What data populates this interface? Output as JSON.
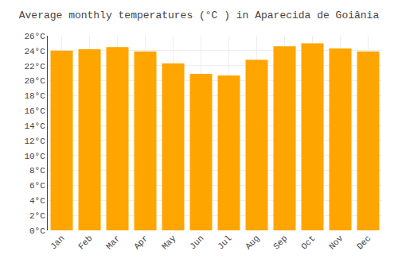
{
  "chart_data": {
    "type": "bar",
    "title": "Average monthly temperatures (°C ) in Aparecida de Goiânia",
    "categories": [
      "Jan",
      "Feb",
      "Mar",
      "Apr",
      "May",
      "Jun",
      "Jul",
      "Aug",
      "Sep",
      "Oct",
      "Nov",
      "Dec"
    ],
    "values": [
      24.0,
      24.2,
      24.5,
      23.9,
      22.3,
      20.9,
      20.7,
      22.8,
      24.6,
      25.0,
      24.3,
      23.9
    ],
    "color": "#FFA500",
    "ylim": [
      0,
      26
    ],
    "yticks": [
      {
        "value": 0,
        "label": "0°C"
      },
      {
        "value": 2,
        "label": "2°C"
      },
      {
        "value": 4,
        "label": "4°C"
      },
      {
        "value": 6,
        "label": "6°C"
      },
      {
        "value": 8,
        "label": "8°C"
      },
      {
        "value": 10,
        "label": "10°C"
      },
      {
        "value": 12,
        "label": "12°C"
      },
      {
        "value": 14,
        "label": "14°C"
      },
      {
        "value": 16,
        "label": "16°C"
      },
      {
        "value": 18,
        "label": "18°C"
      },
      {
        "value": 20,
        "label": "20°C"
      },
      {
        "value": 22,
        "label": "22°C"
      },
      {
        "value": 24,
        "label": "24°C"
      },
      {
        "value": 26,
        "label": "26°C"
      }
    ],
    "grid": true
  }
}
